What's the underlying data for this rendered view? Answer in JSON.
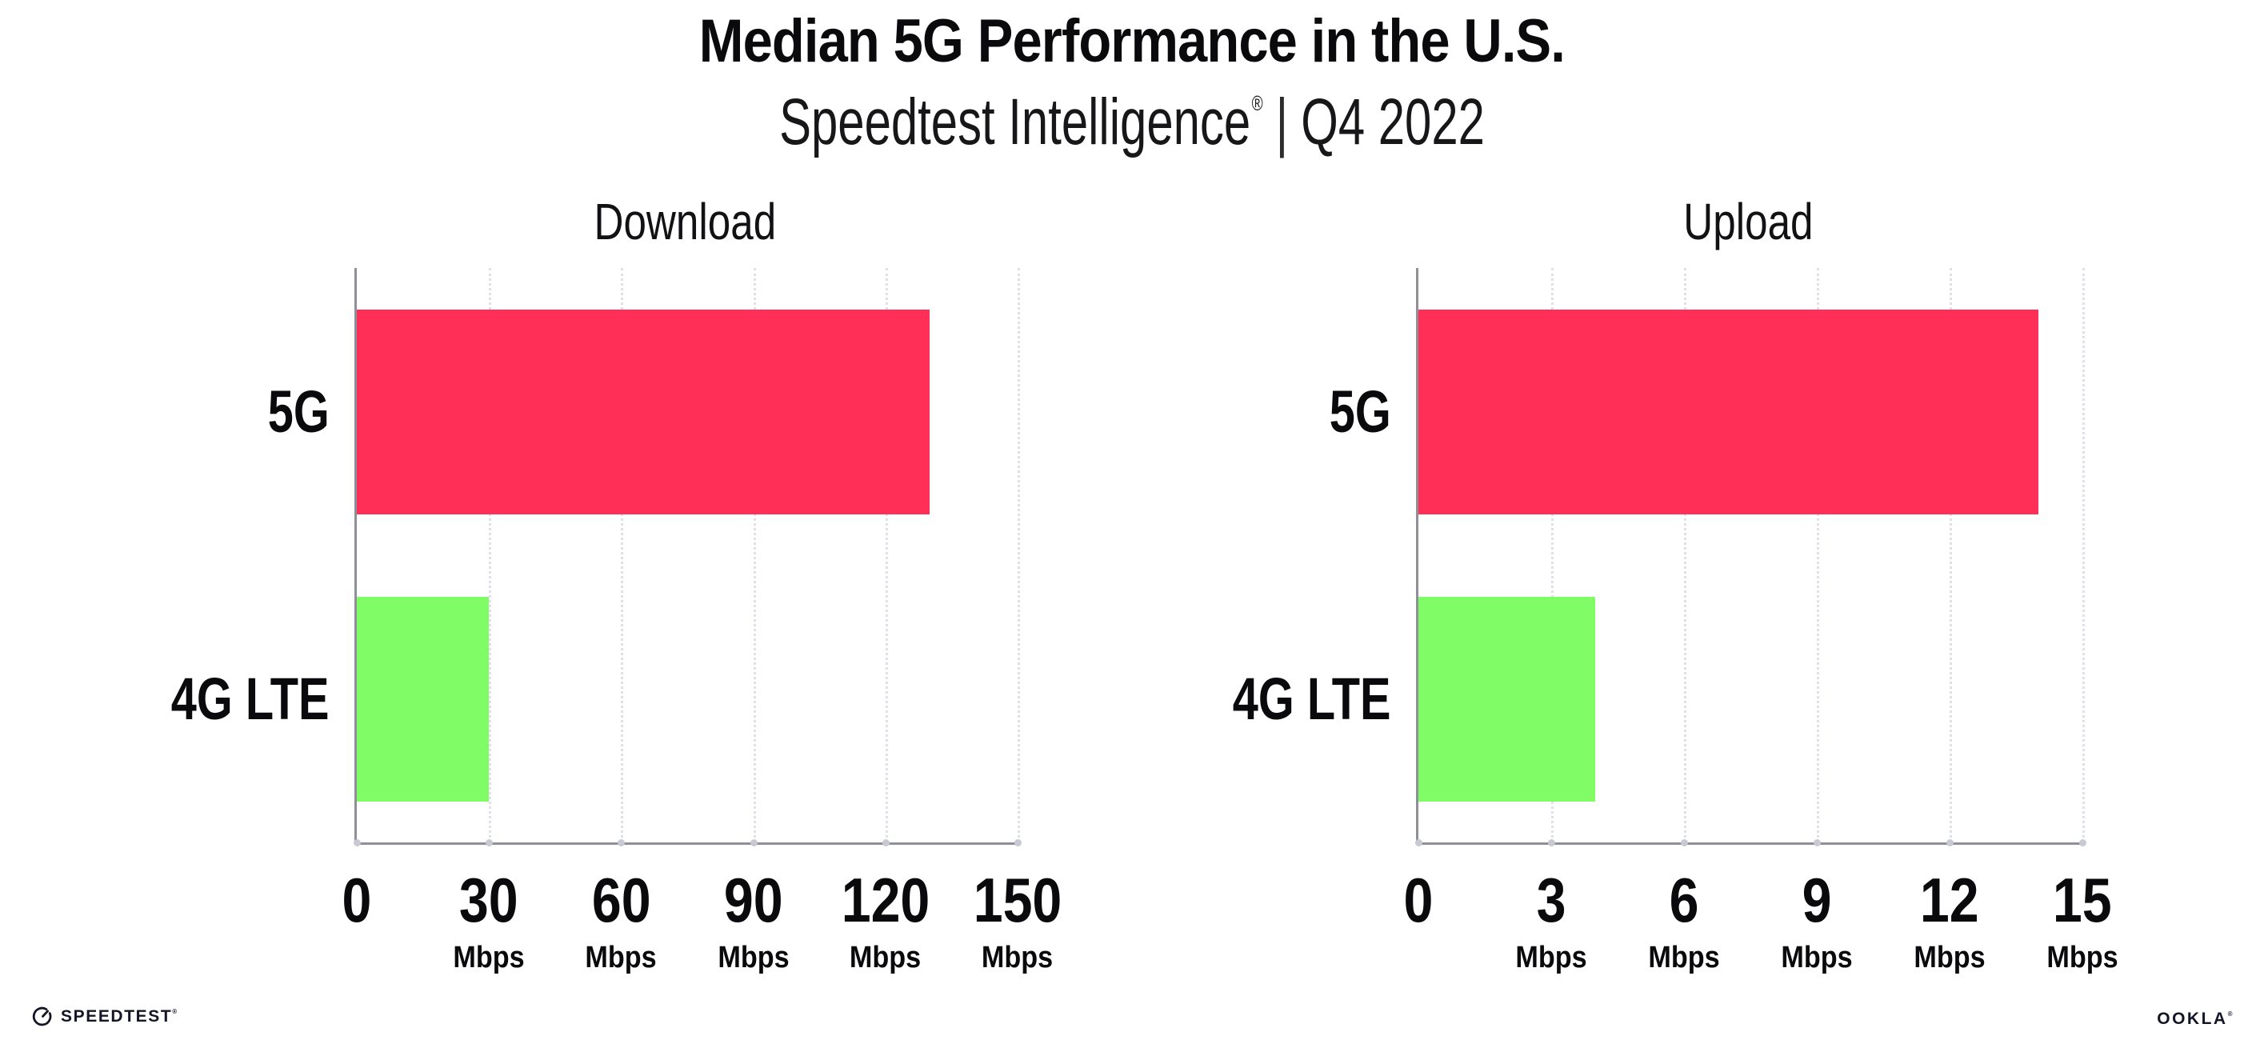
{
  "header": {
    "title": "Median 5G Performance in the U.S.",
    "subtitle": {
      "brand": "Speedtest Intelligence",
      "registered_mark": "®",
      "separator": "|",
      "period": "Q4 2022"
    }
  },
  "colors": {
    "background": "#ffffff",
    "bar_5g": "#ff2f58",
    "bar_4g_lte": "#80fc66",
    "axis_line": "#8f8f97",
    "gridline": "#e0e0e9",
    "axis_tick_dot": "#c9c9d4",
    "text": "#0a0a0c",
    "logo": "#141526"
  },
  "chart_data": [
    {
      "type": "bar",
      "orientation": "horizontal",
      "title": "Download",
      "categories": [
        "5G",
        "4G LTE"
      ],
      "values": [
        130,
        30
      ],
      "unit": "Mbps",
      "xlim": [
        0,
        150
      ],
      "xticks": [
        0,
        30,
        60,
        90,
        120,
        150
      ],
      "tick_unit_label": "Mbps",
      "unit_shown_on_zero": false,
      "grid": "vertical-dotted",
      "legend": "none",
      "bar_colors": [
        "#ff2f58",
        "#80fc66"
      ]
    },
    {
      "type": "bar",
      "orientation": "horizontal",
      "title": "Upload",
      "categories": [
        "5G",
        "4G LTE"
      ],
      "values": [
        14,
        4
      ],
      "unit": "Mbps",
      "xlim": [
        0,
        15
      ],
      "xticks": [
        0,
        3,
        6,
        9,
        12,
        15
      ],
      "tick_unit_label": "Mbps",
      "unit_shown_on_zero": false,
      "grid": "vertical-dotted",
      "legend": "none",
      "bar_colors": [
        "#ff2f58",
        "#80fc66"
      ]
    }
  ],
  "footer": {
    "speedtest_label": "SPEEDTEST",
    "speedtest_registered_mark": "®",
    "ookla_label": "OOKLA",
    "ookla_registered_mark": "®"
  }
}
